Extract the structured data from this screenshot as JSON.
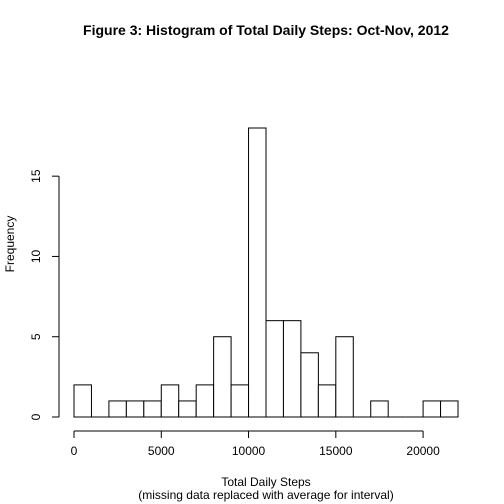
{
  "chart_data": {
    "type": "bar",
    "title": "Figure 3: Histogram of Total Daily Steps: Oct-Nov, 2012",
    "xlabel": "Total Daily Steps",
    "xlabel_sub": "(missing data replaced with average for interval)",
    "ylabel": "Frequency",
    "bin_width": 1000,
    "bins": [
      {
        "from": 0,
        "to": 1000,
        "count": 2
      },
      {
        "from": 1000,
        "to": 2000,
        "count": 0
      },
      {
        "from": 2000,
        "to": 3000,
        "count": 1
      },
      {
        "from": 3000,
        "to": 4000,
        "count": 1
      },
      {
        "from": 4000,
        "to": 5000,
        "count": 1
      },
      {
        "from": 5000,
        "to": 6000,
        "count": 2
      },
      {
        "from": 6000,
        "to": 7000,
        "count": 1
      },
      {
        "from": 7000,
        "to": 8000,
        "count": 2
      },
      {
        "from": 8000,
        "to": 9000,
        "count": 5
      },
      {
        "from": 9000,
        "to": 10000,
        "count": 2
      },
      {
        "from": 10000,
        "to": 11000,
        "count": 18
      },
      {
        "from": 11000,
        "to": 12000,
        "count": 6
      },
      {
        "from": 12000,
        "to": 13000,
        "count": 6
      },
      {
        "from": 13000,
        "to": 14000,
        "count": 4
      },
      {
        "from": 14000,
        "to": 15000,
        "count": 2
      },
      {
        "from": 15000,
        "to": 16000,
        "count": 5
      },
      {
        "from": 16000,
        "to": 17000,
        "count": 0
      },
      {
        "from": 17000,
        "to": 18000,
        "count": 1
      },
      {
        "from": 18000,
        "to": 19000,
        "count": 0
      },
      {
        "from": 19000,
        "to": 20000,
        "count": 0
      },
      {
        "from": 20000,
        "to": 21000,
        "count": 1
      },
      {
        "from": 21000,
        "to": 22000,
        "count": 1
      }
    ],
    "xlim": [
      0,
      22000
    ],
    "ylim": [
      0,
      18
    ],
    "x_ticks": [
      0,
      5000,
      10000,
      15000,
      20000
    ],
    "x_tick_labels": [
      "0",
      "5000",
      "10000",
      "15000",
      "20000"
    ],
    "y_ticks": [
      0,
      5,
      10,
      15
    ],
    "y_tick_labels": [
      "0",
      "5",
      "10",
      "15"
    ],
    "grid": false,
    "legend": "none"
  }
}
